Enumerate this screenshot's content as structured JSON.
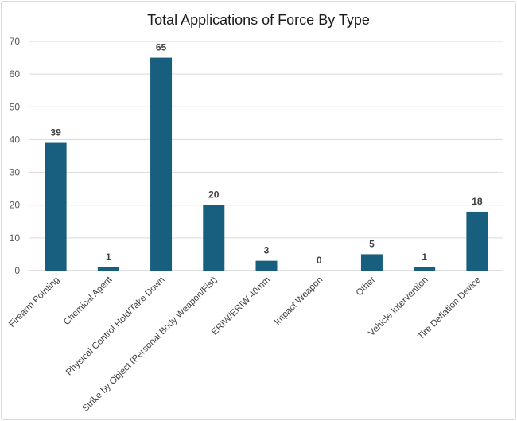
{
  "chart_data": {
    "type": "bar",
    "title": "Total Applications of Force By Type",
    "xlabel": "",
    "ylabel": "",
    "ylim": [
      0,
      70
    ],
    "yticks": [
      0,
      10,
      20,
      30,
      40,
      50,
      60,
      70
    ],
    "grid": true,
    "legend": "none",
    "bar_color": "#175e7f",
    "categories": [
      "Firearm Pointing",
      "Chemical Agent",
      "Physical Control Hold/Take Down",
      "Strike by Object (Personal Body Weapon/Fist)",
      "ERIW/ERIW 40mm",
      "Impact Weapon",
      "Other",
      "Vehicle Intervention",
      "Tire Deflation Device"
    ],
    "values": [
      39,
      1,
      65,
      20,
      3,
      0,
      5,
      1,
      18
    ]
  }
}
